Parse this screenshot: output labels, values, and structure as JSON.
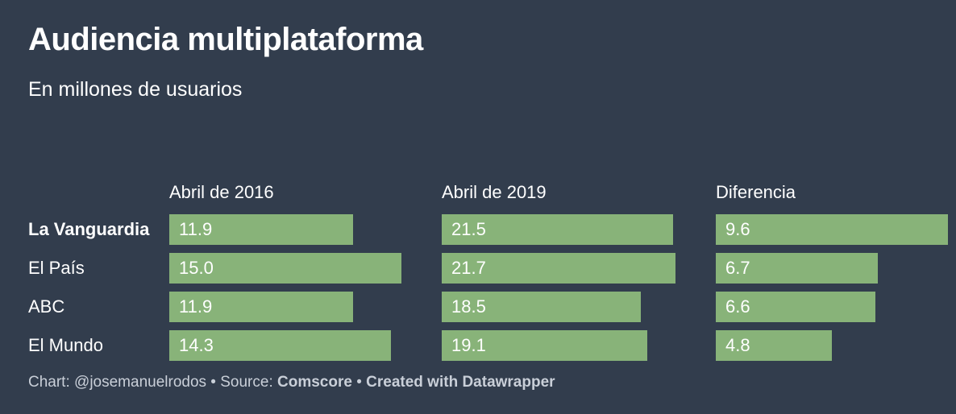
{
  "chart_data": {
    "type": "bar",
    "title": "Audiencia multiplataforma",
    "subtitle": "En millones de usuarios",
    "categories": [
      "La Vanguardia",
      "El País",
      "ABC",
      "El Mundo"
    ],
    "highlight_category": "La Vanguardia",
    "series": [
      {
        "name": "Abril de 2016",
        "values": [
          11.9,
          15.0,
          11.9,
          14.3
        ],
        "labels": [
          "11.9",
          "15.0",
          "11.9",
          "14.3"
        ]
      },
      {
        "name": "Abril de 2019",
        "values": [
          21.5,
          21.7,
          18.5,
          19.1
        ],
        "labels": [
          "21.5",
          "21.7",
          "18.5",
          "19.1"
        ]
      },
      {
        "name": "Diferencia",
        "values": [
          9.6,
          6.7,
          6.6,
          4.8
        ],
        "labels": [
          "9.6",
          "6.7",
          "6.6",
          "4.8"
        ]
      }
    ],
    "xlim_per_panel": [
      [
        0,
        15.0
      ],
      [
        0,
        21.7
      ],
      [
        0,
        9.6
      ]
    ],
    "bar_color": "#88b379"
  },
  "colors": {
    "background": "#323d4d",
    "bar": "#88b379",
    "text": "#ffffff",
    "footer_text": "#c9cfd8"
  },
  "footer": {
    "chart_prefix": "Chart: ",
    "author": "@josemanuelrodos",
    "sep1": " • ",
    "source_prefix": "Source: ",
    "source": "Comscore",
    "sep2": " • ",
    "created": "Created with Datawrapper"
  }
}
